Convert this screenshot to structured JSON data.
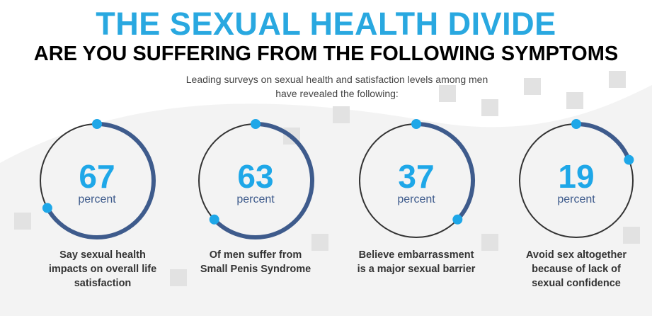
{
  "header": {
    "title": "THE SEXUAL HEALTH DIVIDE",
    "subtitle": "ARE YOU SUFFERING FROM THE FOLLOWING SYMPTOMS",
    "description": "Leading surveys on sexual health and satisfaction levels among men have revealed the following:"
  },
  "stats": [
    {
      "value": 67,
      "unit": "percent",
      "caption": "Say sexual health impacts on overall life satisfaction"
    },
    {
      "value": 63,
      "unit": "percent",
      "caption": "Of men suffer from Small Penis Syndrome"
    },
    {
      "value": 37,
      "unit": "percent",
      "caption": "Believe embarrassment is a major sexual barrier"
    },
    {
      "value": 19,
      "unit": "percent",
      "caption": "Avoid sex altogether because of lack of sexual confidence"
    }
  ]
}
